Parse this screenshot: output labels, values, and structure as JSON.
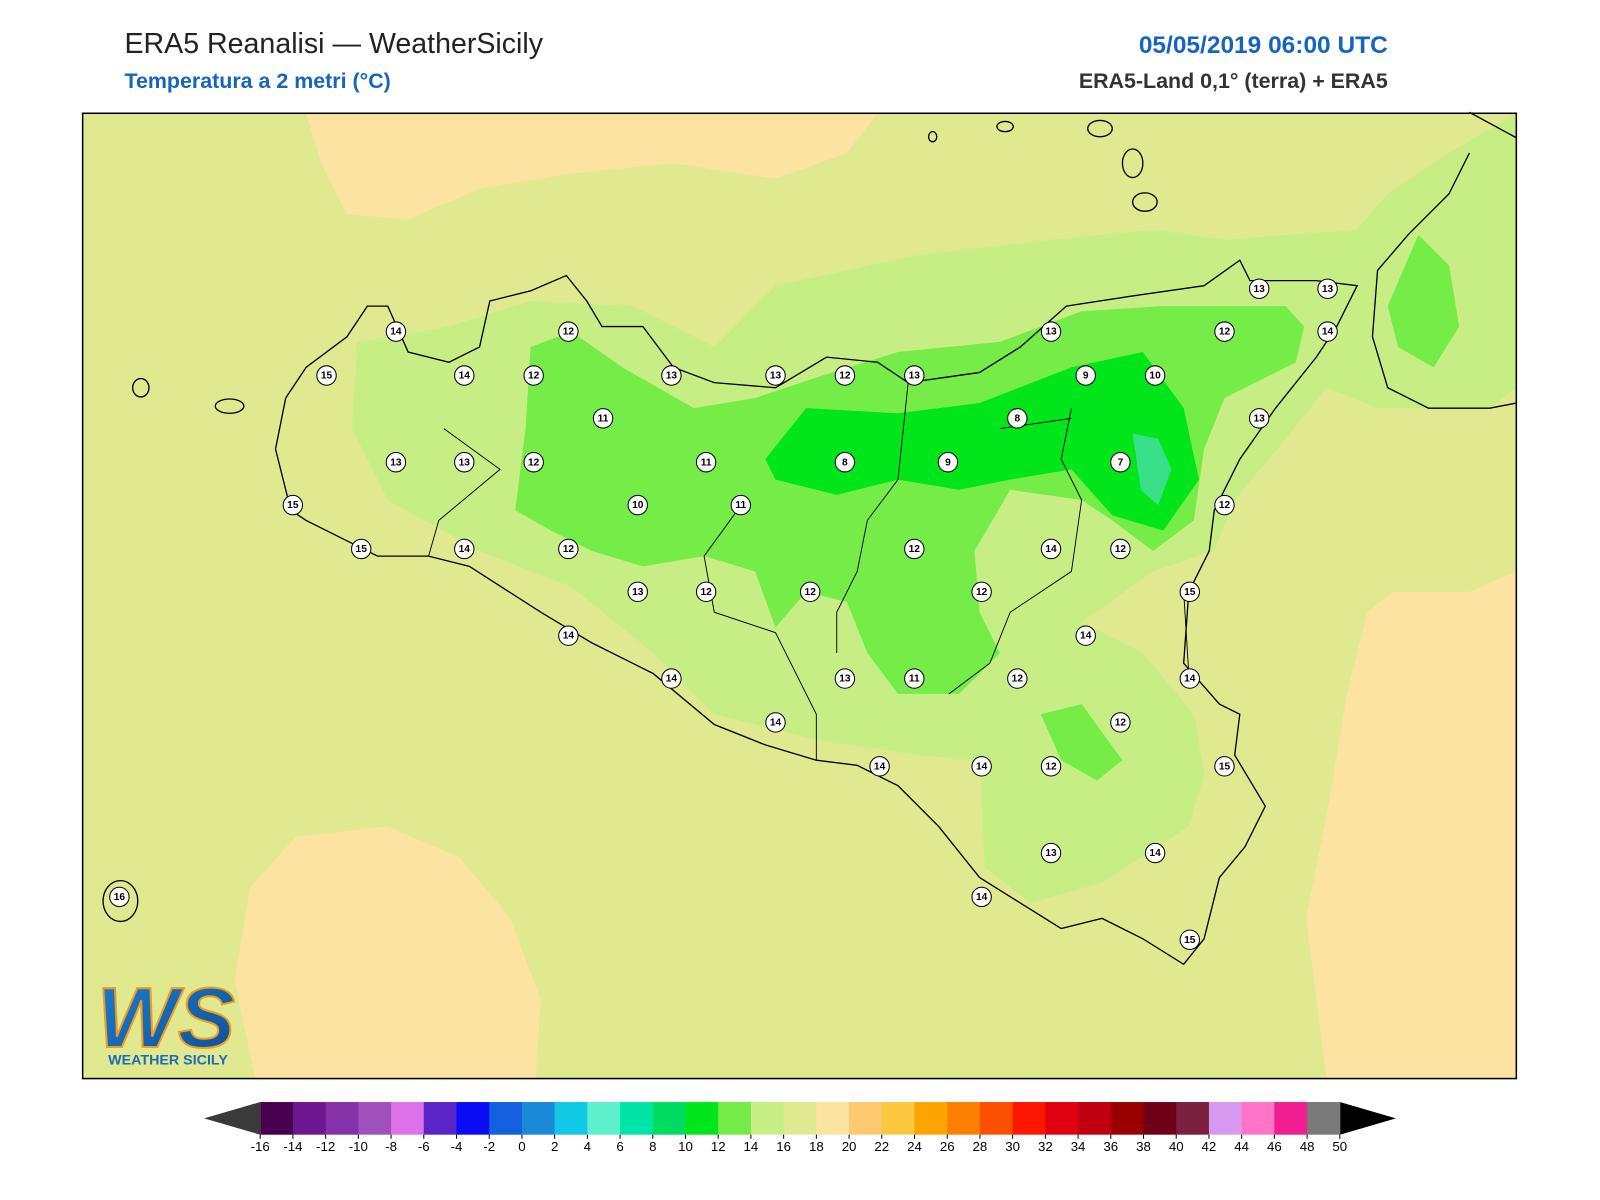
{
  "header": {
    "title": "ERA5 Reanalisi — WeatherSicily",
    "subtitle": "Temperatura a 2 metri (°C)",
    "datetime": "05/05/2019 06:00 UTC",
    "source": "ERA5-Land 0,1° (terra) + ERA5"
  },
  "stations": [
    14,
    15,
    14,
    12,
    12,
    13,
    13,
    12,
    13,
    13,
    9,
    10,
    12,
    13,
    13,
    14,
    11,
    8,
    13,
    13,
    13,
    12,
    11,
    8,
    9,
    7,
    15,
    10,
    11,
    12,
    15,
    14,
    12,
    12,
    14,
    12,
    13,
    12,
    12,
    12,
    15,
    14,
    14,
    14,
    13,
    11,
    12,
    14,
    14,
    12,
    14,
    14,
    12,
    15,
    13,
    14,
    16,
    14,
    15
  ],
  "colorbar": {
    "ticks": [
      -16,
      -14,
      -12,
      -10,
      -8,
      -6,
      -4,
      -2,
      0,
      2,
      4,
      6,
      8,
      10,
      12,
      14,
      16,
      18,
      20,
      22,
      24,
      26,
      28,
      30,
      32,
      34,
      36,
      38,
      40,
      42,
      44,
      46,
      48,
      50
    ],
    "colors": [
      "#48004f",
      "#6b1890",
      "#8432a8",
      "#a050bc",
      "#dd72e8",
      "#5a25c6",
      "#0b0cf5",
      "#1560e0",
      "#1a8ad8",
      "#10c8e4",
      "#5cf0cc",
      "#00e4a8",
      "#00dc62",
      "#00e61a",
      "#76ec48",
      "#c6ee85",
      "#e0e98f",
      "#fde3a1",
      "#fcc870",
      "#fcc840",
      "#fca500",
      "#fc7f00",
      "#fc5000",
      "#fc1800",
      "#e00010",
      "#c00010",
      "#9a0000",
      "#6e0018",
      "#7c2040",
      "#d89af0",
      "#ff74c8",
      "#f01e90",
      "#7a7a7a"
    ]
  },
  "logo": {
    "mark": "WS",
    "name": "WEATHER SICILY"
  }
}
